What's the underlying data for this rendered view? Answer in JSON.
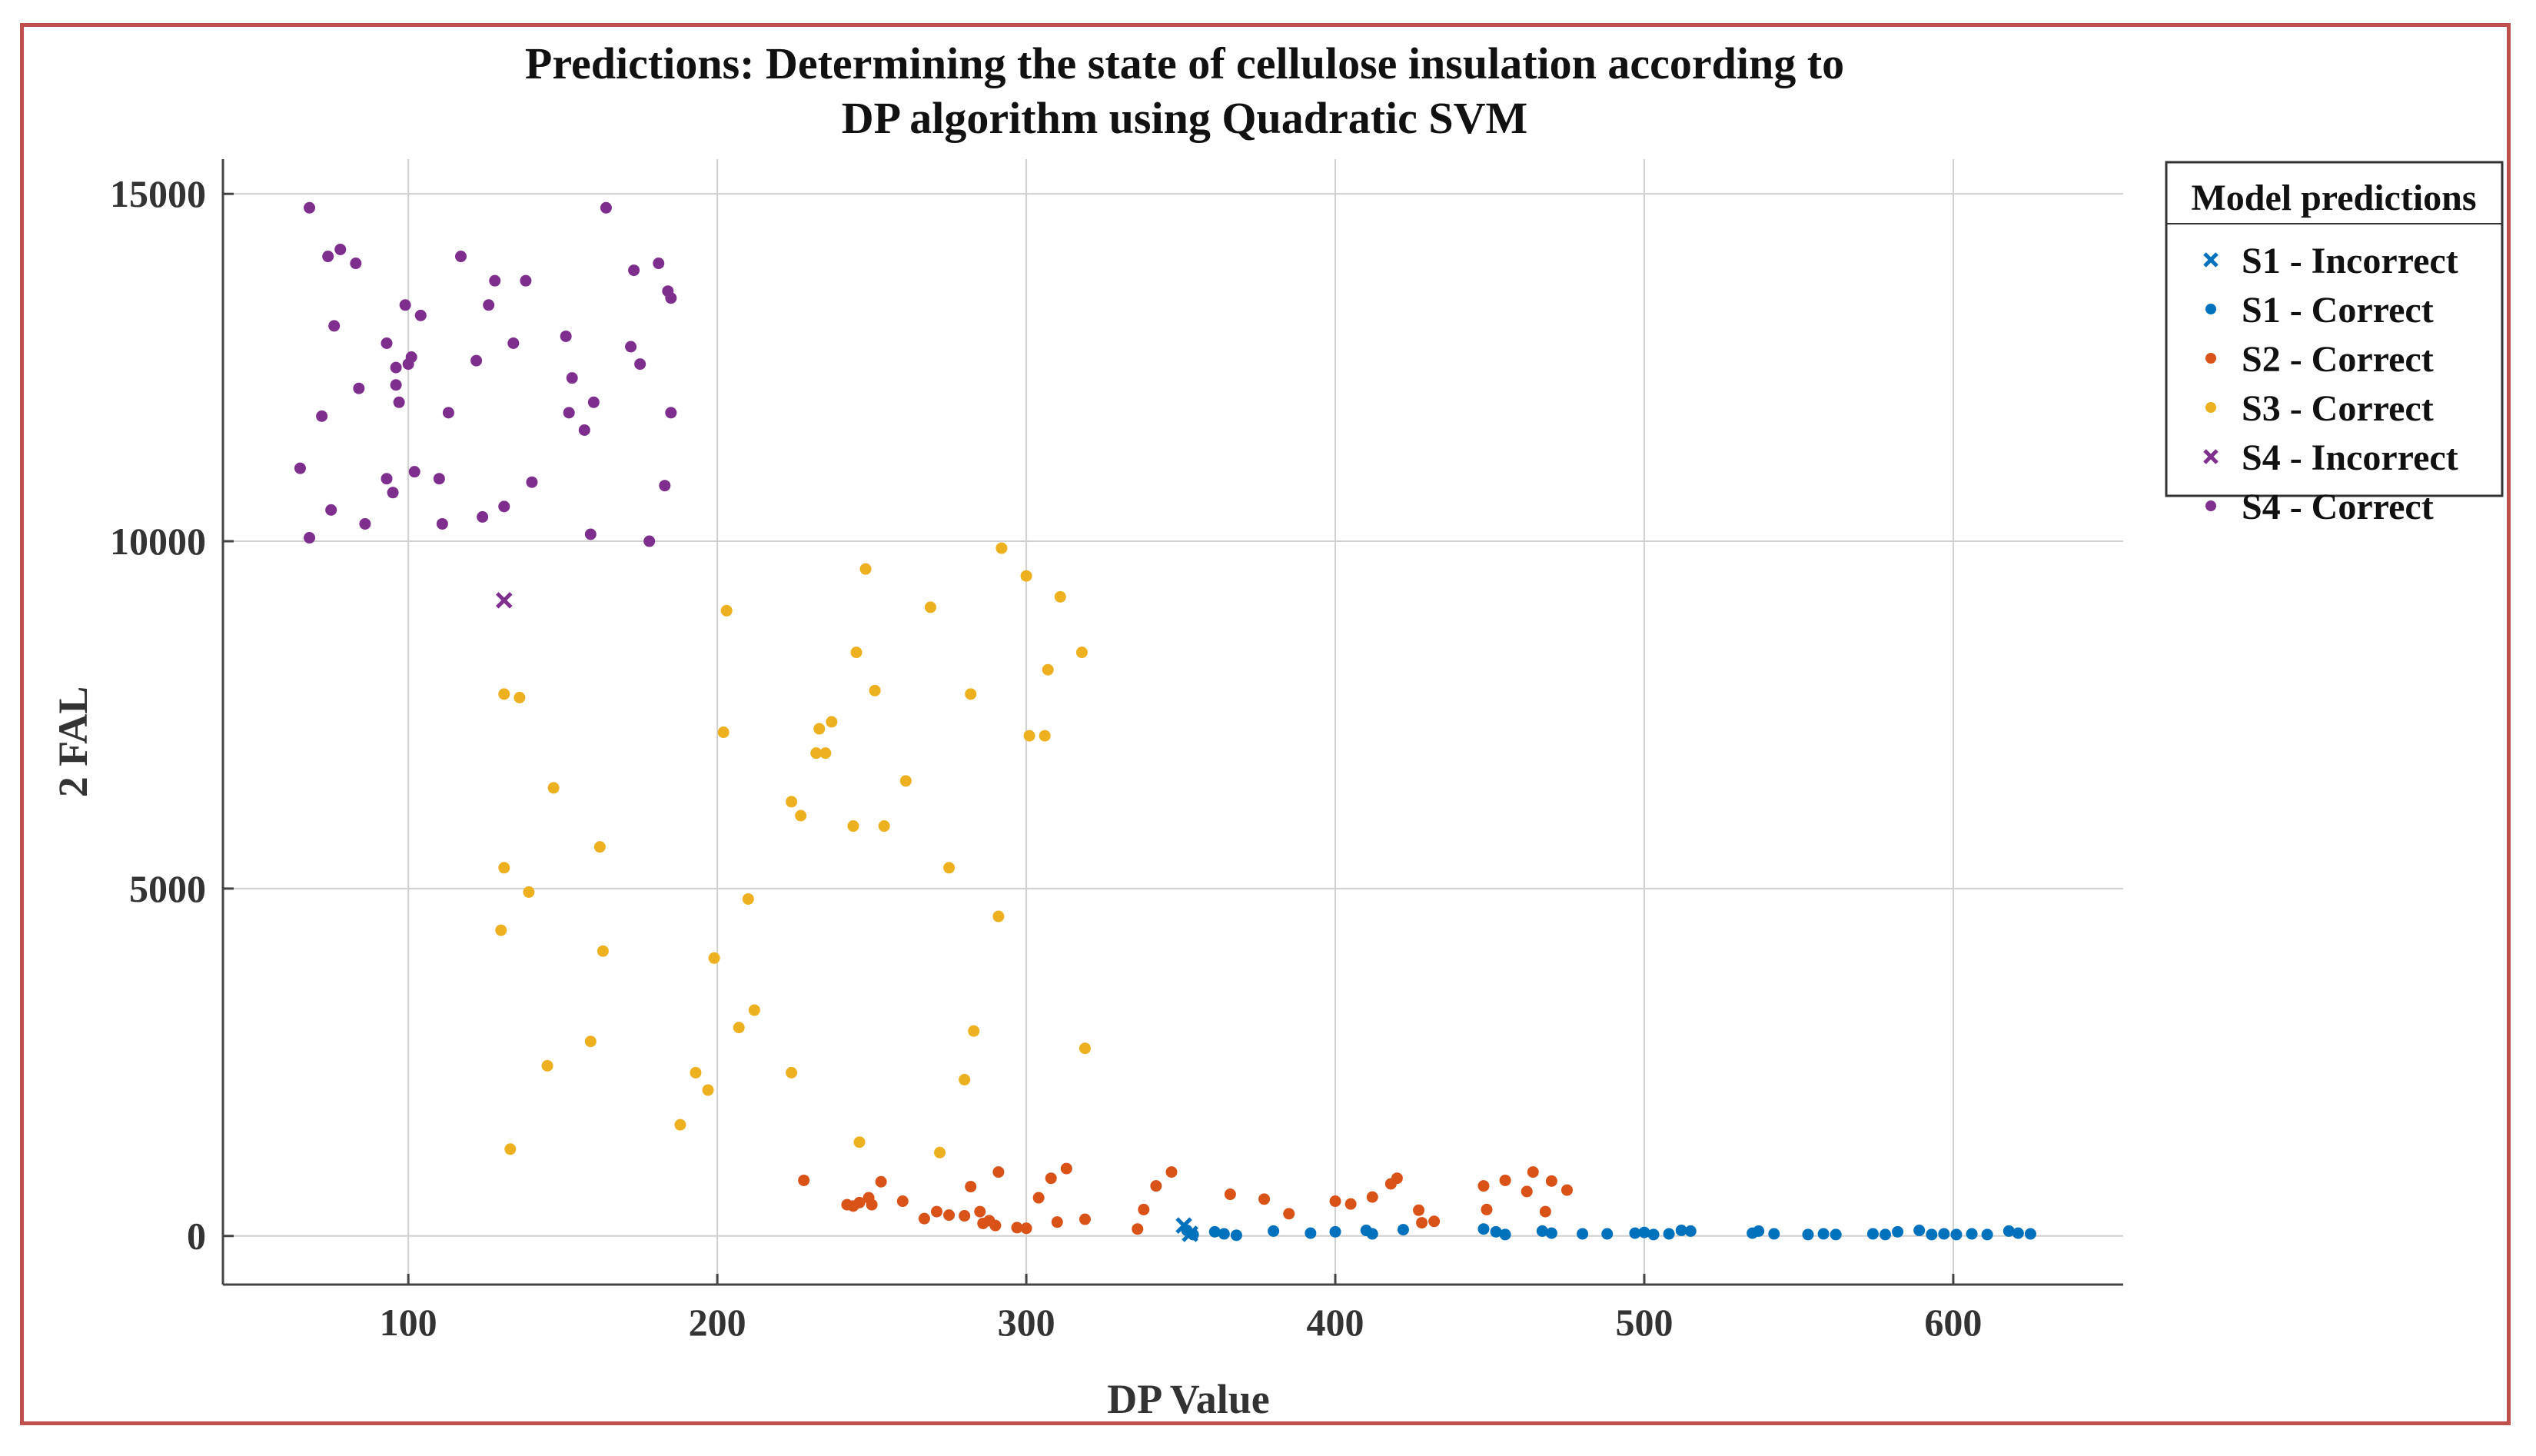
{
  "chart_data": {
    "type": "scatter",
    "title_lines": [
      "Predictions: Determining the state of cellulose insulation according to",
      "DP algorithm using Quadratic SVM"
    ],
    "xlabel": "DP Value",
    "ylabel": "2 FAL",
    "xlim": [
      40,
      655
    ],
    "ylim": [
      -700,
      15500
    ],
    "xticks": [
      100,
      200,
      300,
      400,
      500,
      600
    ],
    "yticks": [
      0,
      5000,
      10000,
      15000
    ],
    "grid": true,
    "legend_title": "Model predictions",
    "legend_position": "top-right outside",
    "series": [
      {
        "name": "S1 - Incorrect",
        "marker": "x",
        "color": "#0072BD",
        "points": [
          [
            351,
            150
          ],
          [
            353,
            30
          ]
        ]
      },
      {
        "name": "S1 - Correct",
        "marker": "dot",
        "color": "#0072BD",
        "points": [
          [
            352,
            80
          ],
          [
            354,
            20
          ],
          [
            361,
            60
          ],
          [
            364,
            30
          ],
          [
            368,
            10
          ],
          [
            380,
            70
          ],
          [
            392,
            40
          ],
          [
            400,
            60
          ],
          [
            410,
            80
          ],
          [
            412,
            30
          ],
          [
            422,
            90
          ],
          [
            448,
            100
          ],
          [
            452,
            60
          ],
          [
            455,
            20
          ],
          [
            467,
            70
          ],
          [
            470,
            40
          ],
          [
            480,
            30
          ],
          [
            488,
            30
          ],
          [
            497,
            40
          ],
          [
            500,
            50
          ],
          [
            503,
            20
          ],
          [
            508,
            30
          ],
          [
            512,
            80
          ],
          [
            515,
            70
          ],
          [
            535,
            40
          ],
          [
            537,
            70
          ],
          [
            542,
            30
          ],
          [
            553,
            20
          ],
          [
            558,
            30
          ],
          [
            562,
            20
          ],
          [
            574,
            30
          ],
          [
            578,
            20
          ],
          [
            582,
            60
          ],
          [
            589,
            80
          ],
          [
            593,
            20
          ],
          [
            597,
            30
          ],
          [
            601,
            20
          ],
          [
            606,
            30
          ],
          [
            611,
            20
          ],
          [
            618,
            70
          ],
          [
            621,
            40
          ],
          [
            625,
            30
          ]
        ]
      },
      {
        "name": "S2 - Correct",
        "marker": "dot",
        "color": "#D95319",
        "points": [
          [
            228,
            800
          ],
          [
            242,
            450
          ],
          [
            244,
            430
          ],
          [
            246,
            480
          ],
          [
            249,
            550
          ],
          [
            250,
            450
          ],
          [
            253,
            780
          ],
          [
            260,
            500
          ],
          [
            267,
            250
          ],
          [
            271,
            350
          ],
          [
            275,
            300
          ],
          [
            280,
            290
          ],
          [
            282,
            710
          ],
          [
            285,
            350
          ],
          [
            286,
            180
          ],
          [
            288,
            220
          ],
          [
            290,
            150
          ],
          [
            291,
            920
          ],
          [
            297,
            120
          ],
          [
            300,
            110
          ],
          [
            304,
            550
          ],
          [
            308,
            830
          ],
          [
            310,
            200
          ],
          [
            313,
            970
          ],
          [
            319,
            240
          ],
          [
            336,
            100
          ],
          [
            338,
            380
          ],
          [
            342,
            720
          ],
          [
            347,
            920
          ],
          [
            366,
            600
          ],
          [
            377,
            530
          ],
          [
            385,
            320
          ],
          [
            400,
            500
          ],
          [
            405,
            460
          ],
          [
            412,
            560
          ],
          [
            418,
            750
          ],
          [
            420,
            830
          ],
          [
            427,
            370
          ],
          [
            428,
            190
          ],
          [
            432,
            210
          ],
          [
            448,
            720
          ],
          [
            449,
            380
          ],
          [
            455,
            800
          ],
          [
            462,
            640
          ],
          [
            464,
            920
          ],
          [
            468,
            350
          ],
          [
            470,
            790
          ],
          [
            475,
            660
          ]
        ]
      },
      {
        "name": "S3 - Correct",
        "marker": "dot",
        "color": "#EDB120",
        "points": [
          [
            130,
            4400
          ],
          [
            131,
            5300
          ],
          [
            131,
            7800
          ],
          [
            133,
            1250
          ],
          [
            136,
            7750
          ],
          [
            139,
            4950
          ],
          [
            145,
            2450
          ],
          [
            147,
            6450
          ],
          [
            159,
            2800
          ],
          [
            162,
            5600
          ],
          [
            163,
            4100
          ],
          [
            188,
            1600
          ],
          [
            193,
            2350
          ],
          [
            197,
            2100
          ],
          [
            199,
            4000
          ],
          [
            202,
            7250
          ],
          [
            203,
            9000
          ],
          [
            207,
            3000
          ],
          [
            210,
            4850
          ],
          [
            212,
            3250
          ],
          [
            224,
            2350
          ],
          [
            224,
            6250
          ],
          [
            227,
            6050
          ],
          [
            232,
            6950
          ],
          [
            233,
            7300
          ],
          [
            235,
            6950
          ],
          [
            237,
            7400
          ],
          [
            244,
            5900
          ],
          [
            245,
            8400
          ],
          [
            246,
            1350
          ],
          [
            248,
            9600
          ],
          [
            251,
            7850
          ],
          [
            254,
            5900
          ],
          [
            261,
            6550
          ],
          [
            269,
            9050
          ],
          [
            272,
            1200
          ],
          [
            275,
            5300
          ],
          [
            280,
            2250
          ],
          [
            282,
            7800
          ],
          [
            283,
            2950
          ],
          [
            291,
            4600
          ],
          [
            292,
            9900
          ],
          [
            300,
            9500
          ],
          [
            301,
            7200
          ],
          [
            306,
            7200
          ],
          [
            307,
            8150
          ],
          [
            311,
            9200
          ],
          [
            318,
            8400
          ],
          [
            319,
            2700
          ]
        ]
      },
      {
        "name": "S4 - Incorrect",
        "marker": "x",
        "color": "#7E2F8E",
        "points": [
          [
            131,
            9150
          ]
        ]
      },
      {
        "name": "S4 - Correct",
        "marker": "dot",
        "color": "#7E2F8E",
        "points": [
          [
            65,
            11050
          ],
          [
            68,
            14800
          ],
          [
            68,
            10050
          ],
          [
            72,
            11800
          ],
          [
            74,
            14100
          ],
          [
            75,
            10450
          ],
          [
            76,
            13100
          ],
          [
            78,
            14200
          ],
          [
            83,
            14000
          ],
          [
            84,
            12200
          ],
          [
            86,
            10250
          ],
          [
            93,
            12850
          ],
          [
            93,
            10900
          ],
          [
            95,
            10700
          ],
          [
            96,
            12500
          ],
          [
            96,
            12250
          ],
          [
            97,
            12000
          ],
          [
            99,
            13400
          ],
          [
            100,
            12550
          ],
          [
            101,
            12650
          ],
          [
            102,
            11000
          ],
          [
            104,
            13250
          ],
          [
            110,
            10900
          ],
          [
            111,
            10250
          ],
          [
            113,
            11850
          ],
          [
            117,
            14100
          ],
          [
            122,
            12600
          ],
          [
            124,
            10350
          ],
          [
            126,
            13400
          ],
          [
            128,
            13750
          ],
          [
            131,
            10500
          ],
          [
            134,
            12850
          ],
          [
            138,
            13750
          ],
          [
            140,
            10850
          ],
          [
            151,
            12950
          ],
          [
            152,
            11850
          ],
          [
            153,
            12350
          ],
          [
            157,
            11600
          ],
          [
            159,
            10100
          ],
          [
            160,
            12000
          ],
          [
            164,
            14800
          ],
          [
            172,
            12800
          ],
          [
            173,
            13900
          ],
          [
            175,
            12550
          ],
          [
            178,
            10000
          ],
          [
            181,
            14000
          ],
          [
            183,
            10800
          ],
          [
            184,
            13600
          ],
          [
            185,
            13500
          ],
          [
            185,
            11850
          ]
        ]
      }
    ]
  }
}
